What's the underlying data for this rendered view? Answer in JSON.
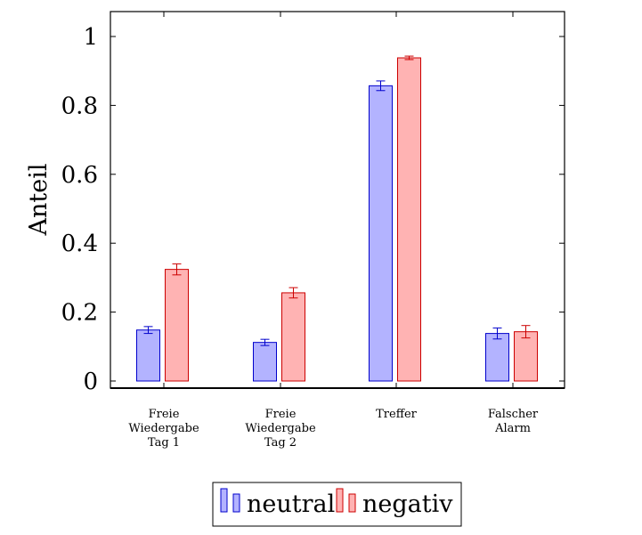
{
  "chart_data": {
    "type": "bar",
    "title": "",
    "xlabel": "",
    "ylabel": "Anteil",
    "ylim": [
      0,
      1.07
    ],
    "yticks": [
      "0",
      "0.2",
      "0.4",
      "0.6",
      "0.8",
      "1"
    ],
    "categories": [
      [
        "Freie",
        "Wiedergabe",
        "Tag 1"
      ],
      [
        "Freie",
        "Wiedergabe",
        "Tag 2"
      ],
      [
        "Treffer"
      ],
      [
        "Falscher",
        "Alarm"
      ]
    ],
    "series": [
      {
        "name": "neutral",
        "color": "#0000cc",
        "fill": "#b3b3ff",
        "values": [
          0.148,
          0.112,
          0.857,
          0.138
        ],
        "errors": [
          0.01,
          0.009,
          0.014,
          0.016
        ]
      },
      {
        "name": "negativ",
        "color": "#cc0000",
        "fill": "#ffb3b3",
        "values": [
          0.324,
          0.256,
          0.938,
          0.143
        ],
        "errors": [
          0.016,
          0.015,
          0.005,
          0.018
        ]
      }
    ],
    "legend": "bottom-center",
    "grid": false
  }
}
